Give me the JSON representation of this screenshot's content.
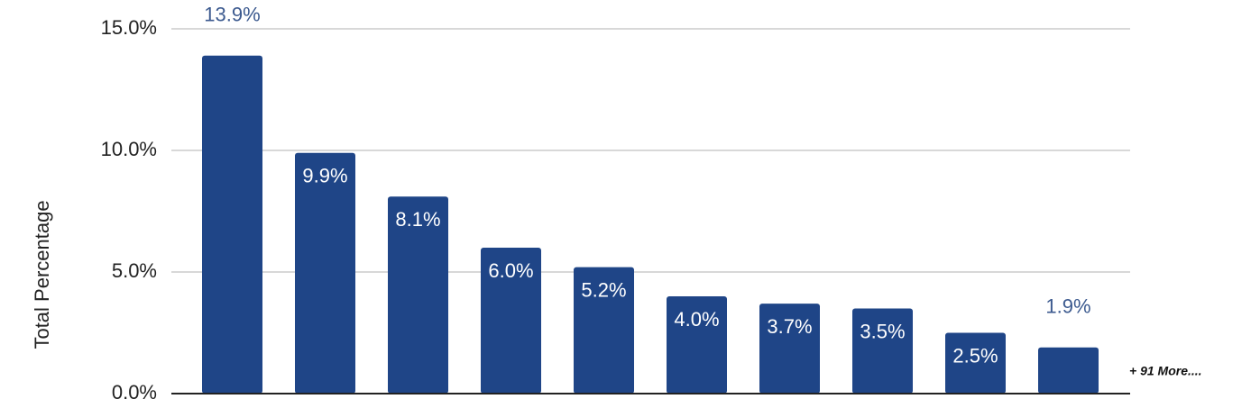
{
  "chart_data": {
    "type": "bar",
    "y_axis_label": "Total Percentage",
    "categories": [
      null,
      null,
      null,
      null,
      null,
      null,
      null,
      null,
      null,
      null
    ],
    "values": [
      13.9,
      9.9,
      8.1,
      6.0,
      5.2,
      4.0,
      3.7,
      3.5,
      2.5,
      1.9
    ],
    "value_labels": [
      "13.9%",
      "9.9%",
      "8.1%",
      "6.0%",
      "5.2%",
      "4.0%",
      "3.7%",
      "3.5%",
      "2.5%",
      "1.9%"
    ],
    "color": "#1f4587",
    "ylim": [
      0,
      15
    ],
    "yticks": [
      {
        "value": 0,
        "label": "0.0%"
      },
      {
        "value": 5,
        "label": "5.0%"
      },
      {
        "value": 10,
        "label": "10.0%"
      },
      {
        "value": 15,
        "label": "15.0%"
      }
    ],
    "grid": true,
    "annotation": "+ 91 More...."
  }
}
